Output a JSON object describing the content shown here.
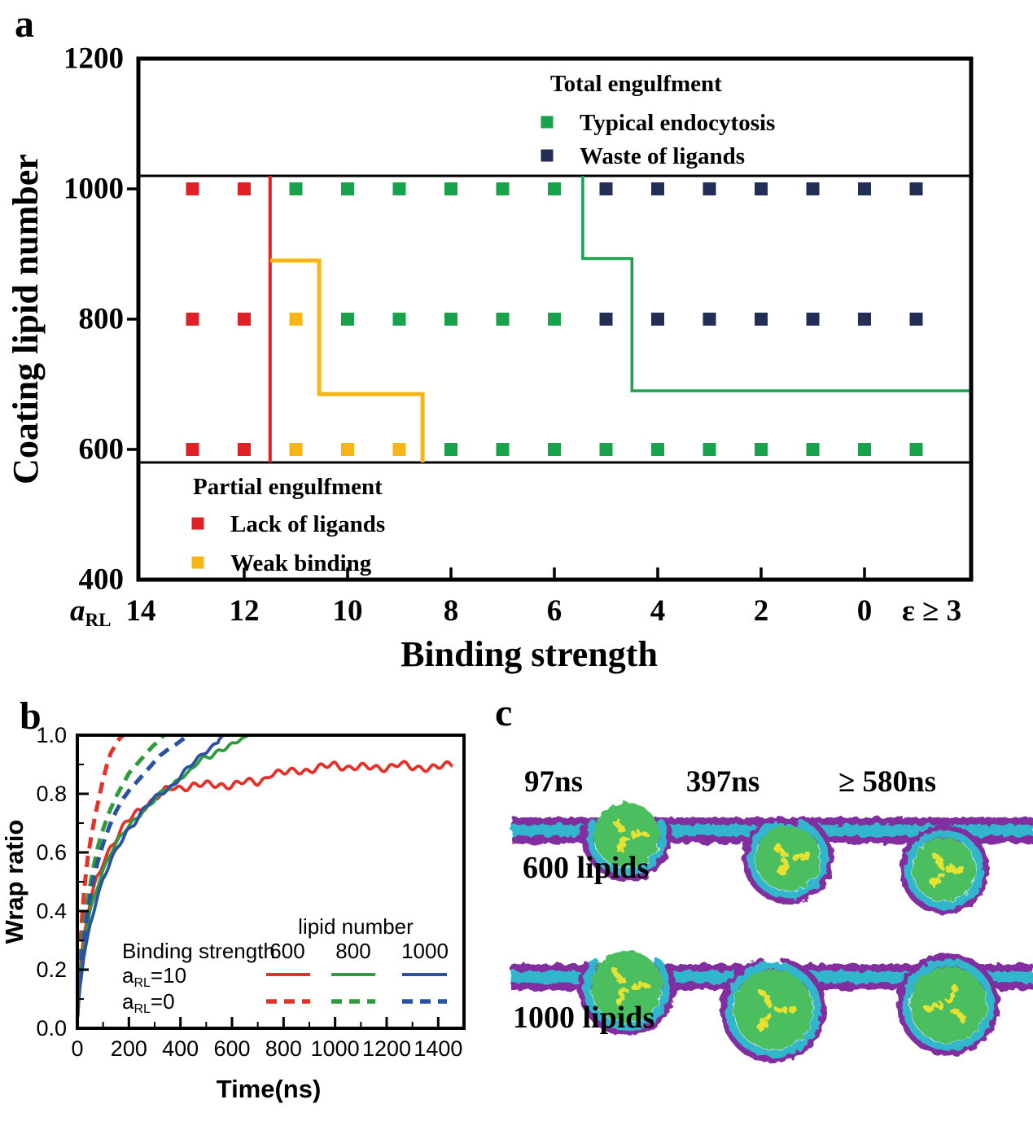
{
  "panels": {
    "a": "a",
    "b": "b",
    "c": "c"
  },
  "chart_data": [
    {
      "type": "scatter",
      "title": "Engulfment phase diagram",
      "xlabel": "Binding strength",
      "ylabel": "Coating lipid number",
      "x_var": {
        "prefix": "a",
        "sub": "RL"
      },
      "xlim_a": [
        14.05,
        -2.05
      ],
      "ylim": [
        400,
        1200
      ],
      "y_ticks": [
        1200,
        1000,
        800,
        600,
        400
      ],
      "x_ticks": [
        {
          "label": "14",
          "a": 14
        },
        {
          "label": "12",
          "a": 12
        },
        {
          "label": "10",
          "a": 10
        },
        {
          "label": "8",
          "a": 8
        },
        {
          "label": "6",
          "a": 6
        },
        {
          "label": "4",
          "a": 4
        },
        {
          "label": "2",
          "a": 2
        },
        {
          "label": "0",
          "a": 0
        },
        {
          "label": "ε ≥ 3",
          "a": -1.3
        }
      ],
      "categories_a": [
        13,
        12,
        11,
        10,
        9,
        8,
        7,
        6,
        5,
        4,
        3,
        2,
        1,
        0,
        -1
      ],
      "rows": [
        {
          "lipid_number": 1000,
          "states": [
            "lack",
            "lack",
            "typical",
            "typical",
            "typical",
            "typical",
            "typical",
            "typical",
            "waste",
            "waste",
            "waste",
            "waste",
            "waste",
            "waste",
            "waste"
          ]
        },
        {
          "lipid_number": 800,
          "states": [
            "lack",
            "lack",
            "weak",
            "typical",
            "typical",
            "typical",
            "typical",
            "typical",
            "waste",
            "waste",
            "waste",
            "waste",
            "waste",
            "waste",
            "waste"
          ]
        },
        {
          "lipid_number": 600,
          "states": [
            "lack",
            "lack",
            "weak",
            "weak",
            "weak",
            "typical",
            "typical",
            "typical",
            "typical",
            "typical",
            "typical",
            "typical",
            "typical",
            "typical",
            "typical"
          ]
        }
      ],
      "state_colors": {
        "typical": "#17A24B",
        "waste": "#232E56",
        "lack": "#E02026",
        "weak": "#F7B516"
      },
      "separators_y": [
        1020,
        580
      ],
      "boundaries": {
        "lack": {
          "state": "lack",
          "path": [
            [
              11.5,
              1020
            ],
            [
              11.5,
              580
            ]
          ]
        },
        "weak": {
          "state": "weak",
          "path": [
            [
              11.5,
              890
            ],
            [
              10.55,
              890
            ],
            [
              10.55,
              685
            ],
            [
              8.55,
              685
            ],
            [
              8.55,
              580
            ]
          ]
        },
        "typical": {
          "state": "typical",
          "path": [
            [
              5.45,
              1020
            ],
            [
              5.45,
              893
            ],
            [
              4.5,
              893
            ],
            [
              4.5,
              690
            ],
            [
              -2.05,
              690
            ]
          ]
        }
      },
      "legends": {
        "total": {
          "title": "Total engulfment",
          "items": [
            {
              "state": "typical",
              "label": "Typical endocytosis"
            },
            {
              "state": "waste",
              "label": "Waste of ligands"
            }
          ]
        },
        "partial": {
          "title": "Partial engulfment",
          "items": [
            {
              "state": "lack",
              "label": "Lack of ligands"
            },
            {
              "state": "weak",
              "label": "Weak binding"
            }
          ]
        }
      }
    },
    {
      "type": "line",
      "title": "Wrap ratio vs time",
      "xlabel": "Time(ns)",
      "ylabel": "Wrap ratio",
      "xlim": [
        0,
        1500
      ],
      "ylim": [
        0,
        1.0
      ],
      "x_major_ticks": [
        0,
        200,
        400,
        600,
        800,
        1000,
        1200,
        1400
      ],
      "x_minor_ticks": [
        100,
        300,
        500,
        700,
        900,
        1100,
        1300
      ],
      "y_major_ticks": [
        {
          "label": "0.0",
          "v": 0.0
        },
        {
          "label": "0.2",
          "v": 0.2
        },
        {
          "label": "0.4",
          "v": 0.4
        },
        {
          "label": "0.6",
          "v": 0.6
        },
        {
          "label": "0.8",
          "v": 0.8
        },
        {
          "label": "1.0",
          "v": 1.0
        }
      ],
      "y_minor_ticks": [
        0.1,
        0.3,
        0.5,
        0.7,
        0.9
      ],
      "colors": {
        "600": "#E53228",
        "800": "#2E9B3C",
        "1000": "#2B52A2"
      },
      "legend": {
        "column_title": "lipid number",
        "row_title": "Binding strength",
        "columns": [
          "600",
          "800",
          "1000"
        ],
        "rows": [
          {
            "prefix": "a",
            "sub": "RL",
            "suffix": "=10",
            "style": "solid"
          },
          {
            "prefix": "a",
            "sub": "RL",
            "suffix": "=0",
            "style": "dashed"
          }
        ]
      },
      "series": [
        {
          "name": "aRL=10 600",
          "lipid_number": "600",
          "style": "solid",
          "noise": 0.009,
          "points": [
            [
              0,
              0.03
            ],
            [
              10,
              0.2
            ],
            [
              25,
              0.31
            ],
            [
              50,
              0.43
            ],
            [
              75,
              0.51
            ],
            [
              100,
              0.57
            ],
            [
              130,
              0.62
            ],
            [
              160,
              0.66
            ],
            [
              190,
              0.7
            ],
            [
              220,
              0.73
            ],
            [
              250,
              0.75
            ],
            [
              280,
              0.77
            ],
            [
              310,
              0.79
            ],
            [
              340,
              0.81
            ],
            [
              370,
              0.82
            ],
            [
              400,
              0.82
            ],
            [
              450,
              0.83
            ],
            [
              500,
              0.83
            ],
            [
              550,
              0.83
            ],
            [
              600,
              0.83
            ],
            [
              650,
              0.84
            ],
            [
              700,
              0.84
            ],
            [
              725,
              0.85
            ],
            [
              750,
              0.87
            ],
            [
              800,
              0.87
            ],
            [
              850,
              0.88
            ],
            [
              900,
              0.88
            ],
            [
              950,
              0.89
            ],
            [
              1000,
              0.9
            ],
            [
              1050,
              0.89
            ],
            [
              1100,
              0.89
            ],
            [
              1150,
              0.89
            ],
            [
              1200,
              0.89
            ],
            [
              1250,
              0.9
            ],
            [
              1300,
              0.89
            ],
            [
              1350,
              0.89
            ],
            [
              1400,
              0.89
            ],
            [
              1455,
              0.9
            ]
          ]
        },
        {
          "name": "aRL=10 800",
          "lipid_number": "800",
          "style": "solid",
          "noise": 0.006,
          "points": [
            [
              0,
              0.03
            ],
            [
              10,
              0.17
            ],
            [
              25,
              0.28
            ],
            [
              50,
              0.4
            ],
            [
              75,
              0.48
            ],
            [
              100,
              0.54
            ],
            [
              130,
              0.6
            ],
            [
              160,
              0.64
            ],
            [
              190,
              0.68
            ],
            [
              220,
              0.71
            ],
            [
              250,
              0.74
            ],
            [
              280,
              0.76
            ],
            [
              310,
              0.79
            ],
            [
              340,
              0.81
            ],
            [
              370,
              0.83
            ],
            [
              400,
              0.86
            ],
            [
              430,
              0.87
            ],
            [
              460,
              0.9
            ],
            [
              490,
              0.92
            ],
            [
              520,
              0.93
            ],
            [
              550,
              0.95
            ],
            [
              580,
              0.96
            ],
            [
              610,
              0.97
            ],
            [
              640,
              0.99
            ],
            [
              665,
              1
            ]
          ]
        },
        {
          "name": "aRL=10 1000",
          "lipid_number": "1000",
          "style": "solid",
          "noise": 0.006,
          "points": [
            [
              0,
              0.03
            ],
            [
              10,
              0.14
            ],
            [
              25,
              0.24
            ],
            [
              50,
              0.36
            ],
            [
              75,
              0.44
            ],
            [
              100,
              0.51
            ],
            [
              130,
              0.57
            ],
            [
              160,
              0.62
            ],
            [
              190,
              0.67
            ],
            [
              220,
              0.7
            ],
            [
              250,
              0.74
            ],
            [
              280,
              0.77
            ],
            [
              310,
              0.79
            ],
            [
              340,
              0.81
            ],
            [
              370,
              0.83
            ],
            [
              400,
              0.86
            ],
            [
              430,
              0.89
            ],
            [
              460,
              0.91
            ],
            [
              490,
              0.94
            ],
            [
              520,
              0.96
            ],
            [
              545,
              0.98
            ],
            [
              565,
              1
            ]
          ]
        },
        {
          "name": "aRL=0 600",
          "lipid_number": "600",
          "style": "dashed",
          "noise": 0,
          "points": [
            [
              0,
              0.04
            ],
            [
              5,
              0.15
            ],
            [
              10,
              0.26
            ],
            [
              20,
              0.4
            ],
            [
              30,
              0.5
            ],
            [
              40,
              0.58
            ],
            [
              55,
              0.66
            ],
            [
              70,
              0.73
            ],
            [
              85,
              0.79
            ],
            [
              100,
              0.85
            ],
            [
              115,
              0.9
            ],
            [
              130,
              0.94
            ],
            [
              150,
              0.97
            ],
            [
              165,
              0.99
            ],
            [
              178,
              1
            ]
          ]
        },
        {
          "name": "aRL=0 800",
          "lipid_number": "800",
          "style": "dashed",
          "noise": 0,
          "points": [
            [
              0,
              0.04
            ],
            [
              10,
              0.2
            ],
            [
              20,
              0.3
            ],
            [
              40,
              0.44
            ],
            [
              60,
              0.54
            ],
            [
              80,
              0.62
            ],
            [
              100,
              0.68
            ],
            [
              125,
              0.74
            ],
            [
              150,
              0.79
            ],
            [
              175,
              0.83
            ],
            [
              200,
              0.87
            ],
            [
              230,
              0.9
            ],
            [
              260,
              0.93
            ],
            [
              290,
              0.96
            ],
            [
              315,
              0.98
            ],
            [
              335,
              1
            ]
          ]
        },
        {
          "name": "aRL=0 1000",
          "lipid_number": "1000",
          "style": "dashed",
          "noise": 0,
          "points": [
            [
              0,
              0.04
            ],
            [
              10,
              0.18
            ],
            [
              20,
              0.27
            ],
            [
              40,
              0.4
            ],
            [
              60,
              0.5
            ],
            [
              80,
              0.57
            ],
            [
              100,
              0.63
            ],
            [
              125,
              0.69
            ],
            [
              150,
              0.74
            ],
            [
              175,
              0.78
            ],
            [
              200,
              0.81
            ],
            [
              230,
              0.84
            ],
            [
              260,
              0.87
            ],
            [
              290,
              0.9
            ],
            [
              320,
              0.93
            ],
            [
              350,
              0.95
            ],
            [
              385,
              0.97
            ],
            [
              415,
              0.99
            ],
            [
              435,
              1
            ]
          ]
        }
      ]
    }
  ],
  "panel_c": {
    "time_labels": [
      "97ns",
      "397ns",
      "≥ 580ns"
    ],
    "colors": {
      "membrane_outer": "#822FA0",
      "membrane_inner": "#32B6CE",
      "particle": "#4CBF60",
      "ligand": "#E6E232"
    },
    "scenes": [
      {
        "label": "600 lipids",
        "particles": [
          {
            "x": 170,
            "sink": 6,
            "r": 40,
            "wrap": 0.55
          },
          {
            "x": 368,
            "sink": 34,
            "r": 40,
            "wrap": 0.82
          },
          {
            "x": 560,
            "sink": 48,
            "r": 39,
            "wrap": 1.0
          }
        ]
      },
      {
        "label": "1000 lipids",
        "particles": [
          {
            "x": 170,
            "sink": 12,
            "r": 44,
            "wrap": 0.65
          },
          {
            "x": 350,
            "sink": 40,
            "r": 49,
            "wrap": 0.92
          },
          {
            "x": 565,
            "sink": 34,
            "r": 47,
            "wrap": 1.0
          }
        ]
      }
    ]
  }
}
